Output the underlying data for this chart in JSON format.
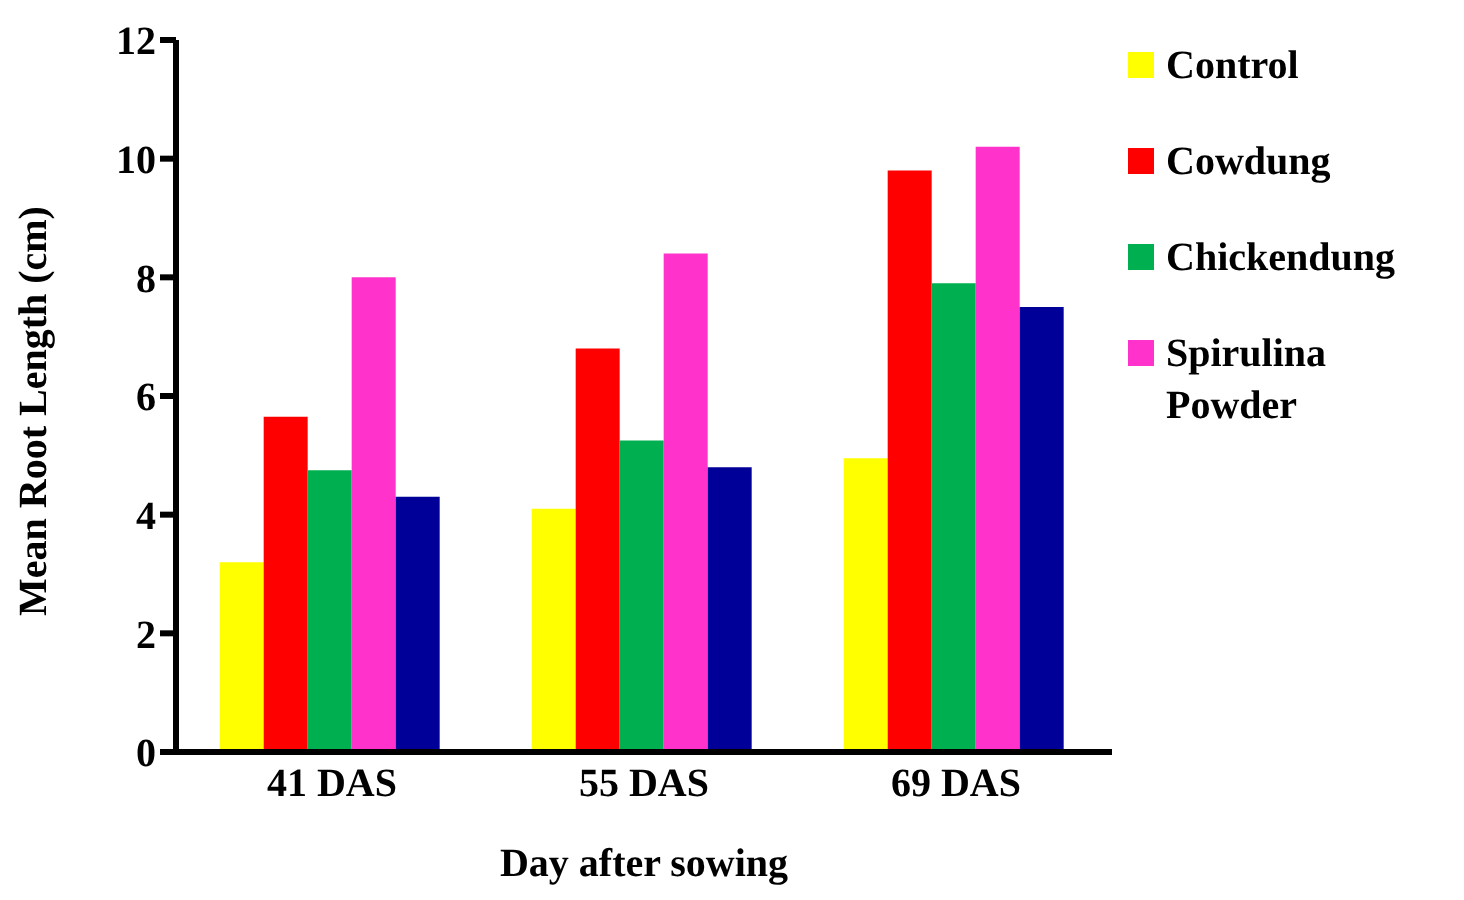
{
  "chart_data": {
    "type": "bar",
    "xlabel": "Day after sowing",
    "ylabel": "Mean Root Length (cm)",
    "categories": [
      "41 DAS",
      "55 DAS",
      "69 DAS"
    ],
    "series": [
      {
        "name": "Control",
        "color": "#ffff00",
        "values": [
          3.2,
          4.1,
          4.95
        ]
      },
      {
        "name": "Cowdung",
        "color": "#ff0000",
        "values": [
          5.65,
          6.8,
          9.8
        ]
      },
      {
        "name": "Chickendung",
        "color": "#00b050",
        "values": [
          4.75,
          5.25,
          7.9
        ]
      },
      {
        "name": "Spirulina Powder",
        "color": "#ff33cc",
        "values": [
          8.0,
          8.4,
          10.2
        ]
      },
      {
        "color": "#000099",
        "values": [
          4.3,
          4.8,
          7.5
        ]
      }
    ],
    "ylim": [
      0,
      12
    ],
    "yticks": [
      0,
      2,
      4,
      6,
      8,
      10,
      12
    ],
    "grid": false,
    "legend": "top right"
  }
}
